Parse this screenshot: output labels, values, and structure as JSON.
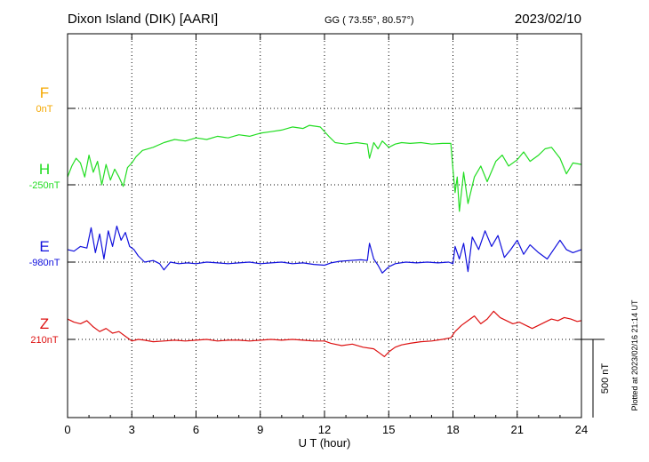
{
  "header": {
    "station": "Dixon Island (DIK)  [AARI]",
    "coords": "GG ( 73.55°,  80.57°)",
    "date": "2023/02/10"
  },
  "footer": {
    "plotted": "Plotted at 2023/02/16 21:14 UT"
  },
  "chart_data": {
    "type": "line",
    "xlabel": "U T (hour)",
    "xlim": [
      0,
      24
    ],
    "x_ticks": [
      0,
      3,
      6,
      9,
      12,
      15,
      18,
      21,
      24
    ],
    "scale_bar": {
      "label": "500 nT",
      "value": 500
    },
    "colors": {
      "F": "#f5a800",
      "H": "#22dd22",
      "E": "#1010dd",
      "Z": "#dd1010"
    },
    "series": [
      {
        "name": "F",
        "baseline_label": "0nT",
        "color": "#f5a800",
        "values": []
      },
      {
        "name": "H",
        "baseline_label": "-250nT",
        "color": "#22dd22",
        "points": [
          [
            0,
            -200
          ],
          [
            0.2,
            -130
          ],
          [
            0.4,
            -80
          ],
          [
            0.6,
            -110
          ],
          [
            0.8,
            -200
          ],
          [
            1.0,
            -60
          ],
          [
            1.2,
            -170
          ],
          [
            1.4,
            -100
          ],
          [
            1.6,
            -250
          ],
          [
            1.8,
            -120
          ],
          [
            2.0,
            -220
          ],
          [
            2.2,
            -150
          ],
          [
            2.4,
            -200
          ],
          [
            2.6,
            -260
          ],
          [
            2.8,
            -140
          ],
          [
            3.0,
            -110
          ],
          [
            3.2,
            -70
          ],
          [
            3.5,
            -30
          ],
          [
            4.0,
            -10
          ],
          [
            4.5,
            20
          ],
          [
            5.0,
            40
          ],
          [
            5.5,
            30
          ],
          [
            6.0,
            50
          ],
          [
            6.5,
            40
          ],
          [
            7.0,
            60
          ],
          [
            7.5,
            50
          ],
          [
            8.0,
            70
          ],
          [
            8.5,
            60
          ],
          [
            9.0,
            80
          ],
          [
            9.5,
            90
          ],
          [
            10.0,
            100
          ],
          [
            10.5,
            120
          ],
          [
            11.0,
            110
          ],
          [
            11.3,
            130
          ],
          [
            11.8,
            120
          ],
          [
            12.2,
            60
          ],
          [
            12.5,
            20
          ],
          [
            13.0,
            10
          ],
          [
            13.5,
            20
          ],
          [
            14.0,
            10
          ],
          [
            14.1,
            -80
          ],
          [
            14.3,
            20
          ],
          [
            14.5,
            -20
          ],
          [
            14.7,
            30
          ],
          [
            15.0,
            -10
          ],
          [
            15.3,
            10
          ],
          [
            15.6,
            20
          ],
          [
            16.0,
            15
          ],
          [
            16.5,
            20
          ],
          [
            17.0,
            10
          ],
          [
            17.5,
            15
          ],
          [
            17.9,
            15
          ],
          [
            18.0,
            -150
          ],
          [
            18.1,
            -300
          ],
          [
            18.2,
            -200
          ],
          [
            18.3,
            -420
          ],
          [
            18.5,
            -170
          ],
          [
            18.7,
            -370
          ],
          [
            19.0,
            -200
          ],
          [
            19.3,
            -130
          ],
          [
            19.6,
            -230
          ],
          [
            20.0,
            -100
          ],
          [
            20.3,
            -60
          ],
          [
            20.6,
            -130
          ],
          [
            21.0,
            -90
          ],
          [
            21.3,
            -40
          ],
          [
            21.6,
            -100
          ],
          [
            22.0,
            -60
          ],
          [
            22.3,
            -20
          ],
          [
            22.6,
            -10
          ],
          [
            23.0,
            -80
          ],
          [
            23.3,
            -180
          ],
          [
            23.6,
            -110
          ],
          [
            24.0,
            -120
          ]
        ]
      },
      {
        "name": "E",
        "baseline_label": "-980nT",
        "color": "#1010dd",
        "points": [
          [
            0,
            -900
          ],
          [
            0.3,
            -910
          ],
          [
            0.6,
            -880
          ],
          [
            0.9,
            -890
          ],
          [
            1.1,
            -760
          ],
          [
            1.3,
            -920
          ],
          [
            1.5,
            -800
          ],
          [
            1.7,
            -960
          ],
          [
            1.9,
            -780
          ],
          [
            2.1,
            -880
          ],
          [
            2.3,
            -750
          ],
          [
            2.5,
            -840
          ],
          [
            2.7,
            -790
          ],
          [
            2.9,
            -880
          ],
          [
            3.1,
            -900
          ],
          [
            3.3,
            -940
          ],
          [
            3.6,
            -980
          ],
          [
            4.0,
            -970
          ],
          [
            4.3,
            -990
          ],
          [
            4.5,
            -1030
          ],
          [
            4.8,
            -980
          ],
          [
            5.2,
            -990
          ],
          [
            5.6,
            -985
          ],
          [
            6.0,
            -990
          ],
          [
            6.5,
            -980
          ],
          [
            7.0,
            -985
          ],
          [
            7.5,
            -990
          ],
          [
            8.0,
            -985
          ],
          [
            8.5,
            -980
          ],
          [
            9.0,
            -990
          ],
          [
            9.5,
            -985
          ],
          [
            10.0,
            -980
          ],
          [
            10.5,
            -990
          ],
          [
            11.0,
            -985
          ],
          [
            11.5,
            -995
          ],
          [
            12.0,
            -1000
          ],
          [
            12.3,
            -985
          ],
          [
            12.7,
            -975
          ],
          [
            13.2,
            -970
          ],
          [
            13.7,
            -965
          ],
          [
            14.0,
            -970
          ],
          [
            14.1,
            -860
          ],
          [
            14.3,
            -960
          ],
          [
            14.5,
            -1000
          ],
          [
            14.7,
            -1050
          ],
          [
            15.0,
            -1010
          ],
          [
            15.3,
            -990
          ],
          [
            15.8,
            -980
          ],
          [
            16.3,
            -985
          ],
          [
            16.8,
            -980
          ],
          [
            17.3,
            -985
          ],
          [
            17.8,
            -980
          ],
          [
            18.0,
            -990
          ],
          [
            18.1,
            -880
          ],
          [
            18.3,
            -960
          ],
          [
            18.5,
            -860
          ],
          [
            18.7,
            -1040
          ],
          [
            18.9,
            -820
          ],
          [
            19.2,
            -900
          ],
          [
            19.5,
            -780
          ],
          [
            19.8,
            -880
          ],
          [
            20.1,
            -810
          ],
          [
            20.4,
            -950
          ],
          [
            20.7,
            -900
          ],
          [
            21.0,
            -840
          ],
          [
            21.3,
            -930
          ],
          [
            21.6,
            -870
          ],
          [
            22.0,
            -920
          ],
          [
            22.4,
            -960
          ],
          [
            22.7,
            -900
          ],
          [
            23.0,
            -840
          ],
          [
            23.3,
            -900
          ],
          [
            23.6,
            -920
          ],
          [
            24.0,
            -900
          ]
        ]
      },
      {
        "name": "Z",
        "baseline_label": "210nT",
        "color": "#dd1010",
        "points": [
          [
            0,
            340
          ],
          [
            0.3,
            320
          ],
          [
            0.6,
            310
          ],
          [
            0.9,
            330
          ],
          [
            1.2,
            290
          ],
          [
            1.5,
            260
          ],
          [
            1.8,
            280
          ],
          [
            2.1,
            250
          ],
          [
            2.4,
            260
          ],
          [
            2.7,
            230
          ],
          [
            3.0,
            200
          ],
          [
            3.3,
            210
          ],
          [
            3.6,
            205
          ],
          [
            4.0,
            195
          ],
          [
            4.5,
            200
          ],
          [
            5.0,
            205
          ],
          [
            5.5,
            200
          ],
          [
            6.0,
            205
          ],
          [
            6.5,
            210
          ],
          [
            7.0,
            200
          ],
          [
            7.5,
            205
          ],
          [
            8.0,
            205
          ],
          [
            8.5,
            200
          ],
          [
            9.0,
            205
          ],
          [
            9.5,
            210
          ],
          [
            10.0,
            205
          ],
          [
            10.5,
            210
          ],
          [
            11.0,
            205
          ],
          [
            11.5,
            200
          ],
          [
            12.0,
            200
          ],
          [
            12.3,
            185
          ],
          [
            12.8,
            170
          ],
          [
            13.3,
            180
          ],
          [
            13.8,
            160
          ],
          [
            14.3,
            150
          ],
          [
            14.6,
            120
          ],
          [
            14.8,
            100
          ],
          [
            15.0,
            130
          ],
          [
            15.3,
            160
          ],
          [
            15.6,
            175
          ],
          [
            16.0,
            185
          ],
          [
            16.5,
            195
          ],
          [
            17.0,
            200
          ],
          [
            17.5,
            210
          ],
          [
            17.9,
            220
          ],
          [
            18.1,
            260
          ],
          [
            18.4,
            300
          ],
          [
            18.7,
            330
          ],
          [
            19.0,
            360
          ],
          [
            19.3,
            310
          ],
          [
            19.6,
            340
          ],
          [
            19.9,
            390
          ],
          [
            20.2,
            350
          ],
          [
            20.5,
            330
          ],
          [
            20.8,
            310
          ],
          [
            21.1,
            320
          ],
          [
            21.4,
            300
          ],
          [
            21.7,
            280
          ],
          [
            22.0,
            300
          ],
          [
            22.3,
            320
          ],
          [
            22.6,
            340
          ],
          [
            22.9,
            330
          ],
          [
            23.2,
            350
          ],
          [
            23.5,
            340
          ],
          [
            23.8,
            325
          ],
          [
            24.0,
            330
          ]
        ]
      }
    ]
  }
}
